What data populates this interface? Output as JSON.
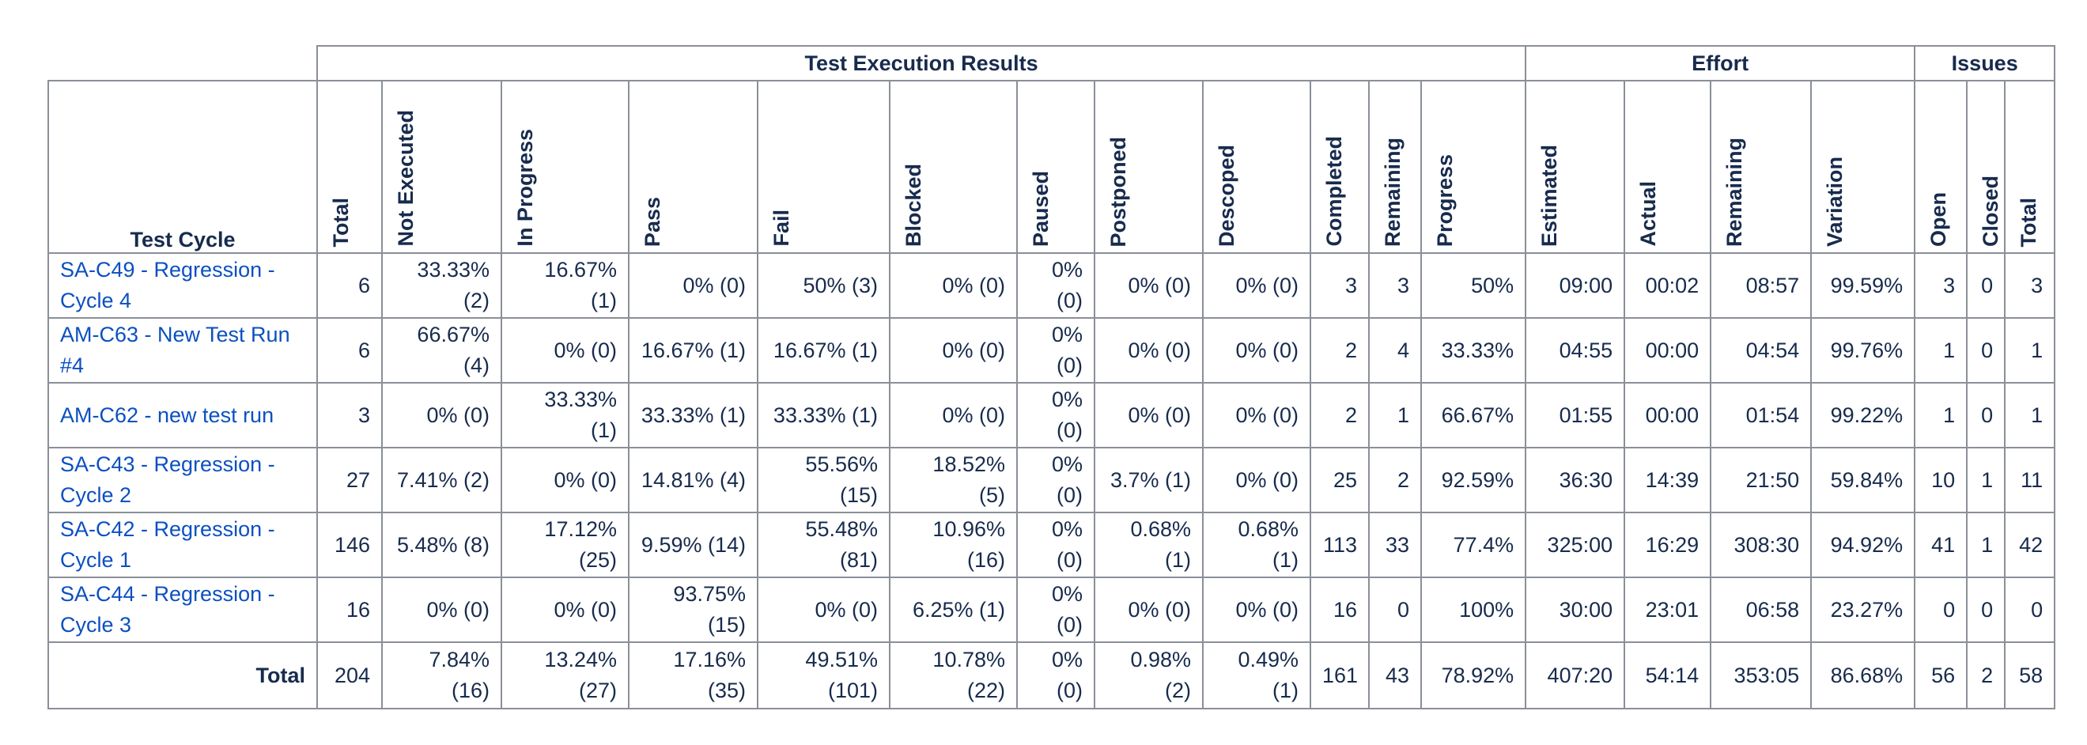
{
  "groups": {
    "test_execution": "Test Execution Results",
    "effort": "Effort",
    "issues": "Issues"
  },
  "headers": {
    "test_cycle": "Test Cycle",
    "columns": [
      "Total",
      "Not Executed",
      "In Progress",
      "Pass",
      "Fail",
      "Blocked",
      "Paused",
      "Postponed",
      "Descoped",
      "Completed",
      "Remaining",
      "Progress",
      "Estimated",
      "Actual",
      "Remaining",
      "Variation",
      "Open",
      "Closed",
      "Total"
    ]
  },
  "rows": [
    {
      "cycle": "SA-C49 - Regression - Cycle 4",
      "cells": [
        "6",
        "33.33% (2)",
        "16.67% (1)",
        "0% (0)",
        "50% (3)",
        "0% (0)",
        "0% (0)",
        "0% (0)",
        "0% (0)",
        "3",
        "3",
        "50%",
        "09:00",
        "00:02",
        "08:57",
        "99.59%",
        "3",
        "0",
        "3"
      ]
    },
    {
      "cycle": "AM-C63 - New Test Run #4",
      "cells": [
        "6",
        "66.67% (4)",
        "0% (0)",
        "16.67% (1)",
        "16.67% (1)",
        "0% (0)",
        "0% (0)",
        "0% (0)",
        "0% (0)",
        "2",
        "4",
        "33.33%",
        "04:55",
        "00:00",
        "04:54",
        "99.76%",
        "1",
        "0",
        "1"
      ]
    },
    {
      "cycle": "AM-C62 - new test run",
      "cells": [
        "3",
        "0% (0)",
        "33.33% (1)",
        "33.33% (1)",
        "33.33% (1)",
        "0% (0)",
        "0% (0)",
        "0% (0)",
        "0% (0)",
        "2",
        "1",
        "66.67%",
        "01:55",
        "00:00",
        "01:54",
        "99.22%",
        "1",
        "0",
        "1"
      ]
    },
    {
      "cycle": "SA-C43 - Regression - Cycle 2",
      "cells": [
        "27",
        "7.41% (2)",
        "0% (0)",
        "14.81% (4)",
        "55.56% (15)",
        "18.52% (5)",
        "0% (0)",
        "3.7% (1)",
        "0% (0)",
        "25",
        "2",
        "92.59%",
        "36:30",
        "14:39",
        "21:50",
        "59.84%",
        "10",
        "1",
        "11"
      ]
    },
    {
      "cycle": "SA-C42 - Regression - Cycle 1",
      "cells": [
        "146",
        "5.48% (8)",
        "17.12% (25)",
        "9.59% (14)",
        "55.48% (81)",
        "10.96% (16)",
        "0% (0)",
        "0.68% (1)",
        "0.68% (1)",
        "113",
        "33",
        "77.4%",
        "325:00",
        "16:29",
        "308:30",
        "94.92%",
        "41",
        "1",
        "42"
      ]
    },
    {
      "cycle": "SA-C44 - Regression - Cycle 3",
      "cells": [
        "16",
        "0% (0)",
        "0% (0)",
        "93.75% (15)",
        "0% (0)",
        "6.25% (1)",
        "0% (0)",
        "0% (0)",
        "0% (0)",
        "16",
        "0",
        "100%",
        "30:00",
        "23:01",
        "06:58",
        "23.27%",
        "0",
        "0",
        "0"
      ]
    }
  ],
  "total_row": {
    "label": "Total",
    "cells": [
      "204",
      "7.84% (16)",
      "13.24% (27)",
      "17.16% (35)",
      "49.51% (101)",
      "10.78% (22)",
      "0% (0)",
      "0.98% (2)",
      "0.49% (1)",
      "161",
      "43",
      "78.92%",
      "407:20",
      "54:14",
      "353:05",
      "86.68%",
      "56",
      "2",
      "58"
    ]
  },
  "colors": {
    "link": "#0b50c1",
    "text": "#172b4d",
    "border": "#8a8f98"
  }
}
